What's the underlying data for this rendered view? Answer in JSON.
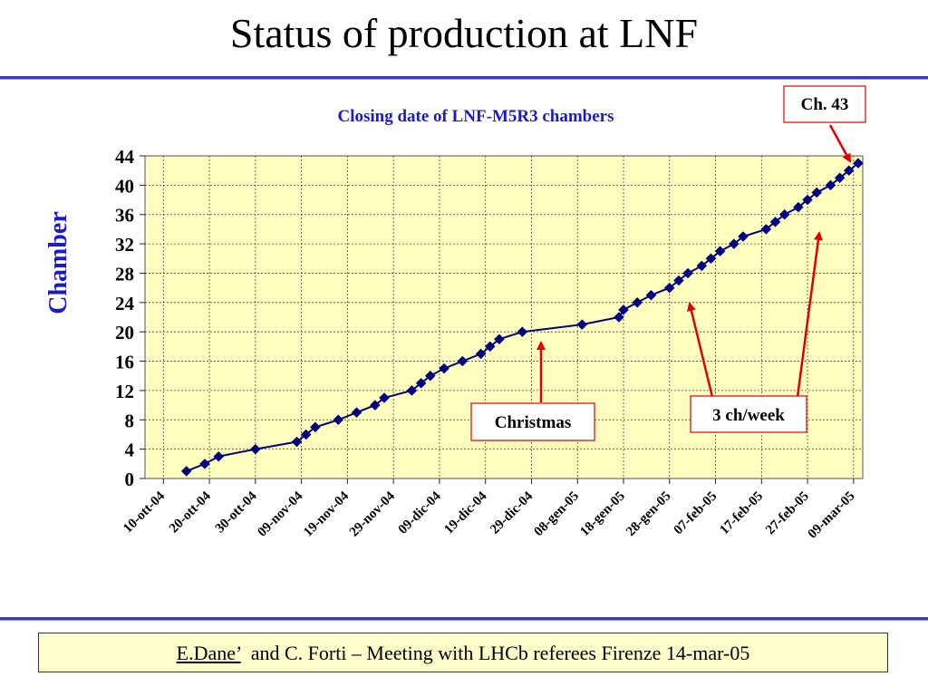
{
  "slide": {
    "title": "Status of production at LNF"
  },
  "footer": {
    "author": "E.Dane’",
    "rest": "  and C. Forti – Meeting with LHCb referees Firenze 14-mar-05"
  },
  "chart_data": {
    "type": "line",
    "title": "Closing date of LNF-M5R3 chambers",
    "xlabel": "",
    "ylabel": "Chamber",
    "ylim": [
      0,
      44
    ],
    "yticks": [
      0,
      4,
      8,
      12,
      16,
      20,
      24,
      28,
      32,
      36,
      40,
      44
    ],
    "xlim": [
      "2004-10-06",
      "2005-03-11"
    ],
    "xticks": [
      {
        "date": "2004-10-10",
        "label": "10-ott-04"
      },
      {
        "date": "2004-10-20",
        "label": "20-ott-04"
      },
      {
        "date": "2004-10-30",
        "label": "30-ott-04"
      },
      {
        "date": "2004-11-09",
        "label": "09-nov-04"
      },
      {
        "date": "2004-11-19",
        "label": "19-nov-04"
      },
      {
        "date": "2004-11-29",
        "label": "29-nov-04"
      },
      {
        "date": "2004-12-09",
        "label": "09-dic-04"
      },
      {
        "date": "2004-12-19",
        "label": "19-dic-04"
      },
      {
        "date": "2004-12-29",
        "label": "29-dic-04"
      },
      {
        "date": "2005-01-08",
        "label": "08-gen-05"
      },
      {
        "date": "2005-01-18",
        "label": "18-gen-05"
      },
      {
        "date": "2005-01-28",
        "label": "28-gen-05"
      },
      {
        "date": "2005-02-07",
        "label": "07-feb-05"
      },
      {
        "date": "2005-02-17",
        "label": "17-feb-05"
      },
      {
        "date": "2005-02-27",
        "label": "27-feb-05"
      },
      {
        "date": "2005-03-09",
        "label": "09-mar-05"
      }
    ],
    "grid": true,
    "plot_background": "#ffffc0",
    "series": [
      {
        "color": "#000080",
        "points": [
          [
            "2004-10-15",
            1
          ],
          [
            "2004-10-19",
            2
          ],
          [
            "2004-10-22",
            3
          ],
          [
            "2004-10-30",
            4
          ],
          [
            "2004-11-08",
            5
          ],
          [
            "2004-11-10",
            6
          ],
          [
            "2004-11-12",
            7
          ],
          [
            "2004-11-17",
            8
          ],
          [
            "2004-11-21",
            9
          ],
          [
            "2004-11-25",
            10
          ],
          [
            "2004-11-27",
            11
          ],
          [
            "2004-12-03",
            12
          ],
          [
            "2004-12-05",
            13
          ],
          [
            "2004-12-07",
            14
          ],
          [
            "2004-12-10",
            15
          ],
          [
            "2004-12-14",
            16
          ],
          [
            "2004-12-18",
            17
          ],
          [
            "2004-12-20",
            18
          ],
          [
            "2004-12-22",
            19
          ],
          [
            "2004-12-27",
            20
          ],
          [
            "2005-01-09",
            21
          ],
          [
            "2005-01-17",
            22
          ],
          [
            "2005-01-18",
            23
          ],
          [
            "2005-01-21",
            24
          ],
          [
            "2005-01-24",
            25
          ],
          [
            "2005-01-28",
            26
          ],
          [
            "2005-01-30",
            27
          ],
          [
            "2005-02-01",
            28
          ],
          [
            "2005-02-04",
            29
          ],
          [
            "2005-02-06",
            30
          ],
          [
            "2005-02-08",
            31
          ],
          [
            "2005-02-11",
            32
          ],
          [
            "2005-02-13",
            33
          ],
          [
            "2005-02-18",
            34
          ],
          [
            "2005-02-20",
            35
          ],
          [
            "2005-02-22",
            36
          ],
          [
            "2005-02-25",
            37
          ],
          [
            "2005-02-27",
            38
          ],
          [
            "2005-03-01",
            39
          ],
          [
            "2005-03-04",
            40
          ],
          [
            "2005-03-06",
            41
          ],
          [
            "2005-03-08",
            42
          ],
          [
            "2005-03-10",
            43
          ]
        ]
      }
    ],
    "annotations": [
      {
        "text": "Ch. 43",
        "color": "#ff0000"
      },
      {
        "text": "Christmas",
        "color": "#ff0000"
      },
      {
        "text": "3 ch/week",
        "color": "#ff0000"
      }
    ]
  }
}
